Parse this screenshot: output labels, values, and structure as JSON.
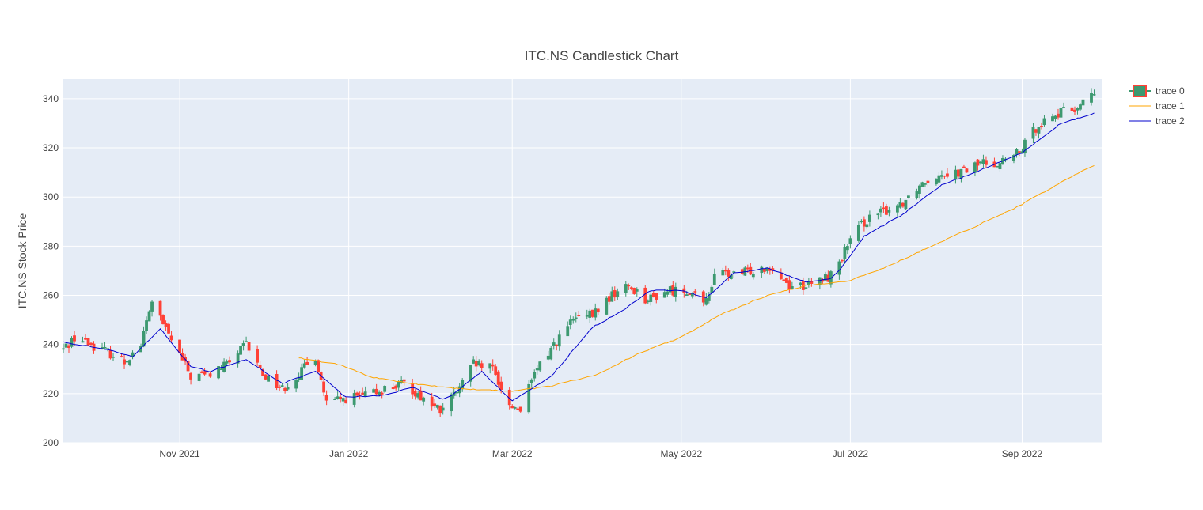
{
  "chart_data": {
    "type": "candlestick",
    "title": "ITC.NS Candlestick Chart",
    "xlabel": "",
    "ylabel": "ITC.NS Stock Price",
    "ylim": [
      200,
      348
    ],
    "xlim": [
      "2021-09-20",
      "2022-09-30"
    ],
    "yticks": [
      200,
      220,
      240,
      260,
      280,
      300,
      320,
      340
    ],
    "xticks": [
      {
        "date": "2021-11-01",
        "label": "Nov 2021"
      },
      {
        "date": "2022-01-01",
        "label": "Jan 2022"
      },
      {
        "date": "2022-03-01",
        "label": "Mar 2022"
      },
      {
        "date": "2022-05-01",
        "label": "May 2022"
      },
      {
        "date": "2022-07-01",
        "label": "Jul 2022"
      },
      {
        "date": "2022-09-01",
        "label": "Sep 2022"
      }
    ],
    "grid": true,
    "legend_position": "top-right",
    "colors": {
      "increasing": "#3d9970",
      "decreasing": "#ff4136",
      "ma_long": "#ffa500",
      "ma_short": "#0000cd",
      "plot_bg": "#e5ecf6",
      "grid": "#ffffff"
    },
    "series": [
      {
        "name": "trace 0",
        "kind": "candlestick"
      },
      {
        "name": "trace 1",
        "kind": "line"
      },
      {
        "name": "trace 2",
        "kind": "line"
      }
    ],
    "close_anchors": [
      [
        "2021-09-20",
        238
      ],
      [
        "2021-09-24",
        243
      ],
      [
        "2021-09-30",
        240
      ],
      [
        "2021-10-06",
        237
      ],
      [
        "2021-10-12",
        233
      ],
      [
        "2021-10-18",
        240
      ],
      [
        "2021-10-22",
        258
      ],
      [
        "2021-10-26",
        248
      ],
      [
        "2021-10-30",
        240
      ],
      [
        "2021-11-05",
        227
      ],
      [
        "2021-11-12",
        228
      ],
      [
        "2021-11-18",
        232
      ],
      [
        "2021-11-25",
        240
      ],
      [
        "2021-12-01",
        228
      ],
      [
        "2021-12-08",
        222
      ],
      [
        "2021-12-14",
        228
      ],
      [
        "2021-12-20",
        235
      ],
      [
        "2021-12-24",
        216
      ],
      [
        "2021-12-31",
        218
      ],
      [
        "2022-01-07",
        219
      ],
      [
        "2022-01-14",
        222
      ],
      [
        "2022-01-21",
        224
      ],
      [
        "2022-01-28",
        218
      ],
      [
        "2022-02-03",
        213
      ],
      [
        "2022-02-10",
        222
      ],
      [
        "2022-02-15",
        232
      ],
      [
        "2022-02-22",
        230
      ],
      [
        "2022-02-28",
        215
      ],
      [
        "2022-03-04",
        214
      ],
      [
        "2022-03-10",
        230
      ],
      [
        "2022-03-16",
        240
      ],
      [
        "2022-03-23",
        250
      ],
      [
        "2022-03-30",
        252
      ],
      [
        "2022-04-06",
        260
      ],
      [
        "2022-04-12",
        264
      ],
      [
        "2022-04-19",
        258
      ],
      [
        "2022-04-26",
        262
      ],
      [
        "2022-05-04",
        262
      ],
      [
        "2022-05-09",
        256
      ],
      [
        "2022-05-14",
        270
      ],
      [
        "2022-05-20",
        268
      ],
      [
        "2022-05-26",
        270
      ],
      [
        "2022-06-02",
        272
      ],
      [
        "2022-06-09",
        264
      ],
      [
        "2022-06-16",
        264
      ],
      [
        "2022-06-24",
        268
      ],
      [
        "2022-07-01",
        282
      ],
      [
        "2022-07-06",
        290
      ],
      [
        "2022-07-13",
        294
      ],
      [
        "2022-07-20",
        298
      ],
      [
        "2022-07-27",
        306
      ],
      [
        "2022-08-03",
        310
      ],
      [
        "2022-08-10",
        310
      ],
      [
        "2022-08-17",
        314
      ],
      [
        "2022-08-24",
        314
      ],
      [
        "2022-08-31",
        318
      ],
      [
        "2022-09-07",
        330
      ],
      [
        "2022-09-14",
        334
      ],
      [
        "2022-09-20",
        336
      ],
      [
        "2022-09-27",
        342
      ]
    ],
    "ma_long_anchors": [
      [
        "2021-12-14",
        234.5
      ],
      [
        "2021-12-28",
        232
      ],
      [
        "2022-01-10",
        226.5
      ],
      [
        "2022-01-25",
        224
      ],
      [
        "2022-02-10",
        222
      ],
      [
        "2022-02-28",
        221
      ],
      [
        "2022-03-15",
        223
      ],
      [
        "2022-04-01",
        228
      ],
      [
        "2022-04-15",
        236
      ],
      [
        "2022-05-01",
        243
      ],
      [
        "2022-05-15",
        252
      ],
      [
        "2022-06-01",
        260
      ],
      [
        "2022-06-15",
        264
      ],
      [
        "2022-07-01",
        266
      ],
      [
        "2022-07-15",
        272
      ],
      [
        "2022-08-01",
        281
      ],
      [
        "2022-08-15",
        288
      ],
      [
        "2022-09-01",
        297
      ],
      [
        "2022-09-15",
        306
      ],
      [
        "2022-09-27",
        313
      ]
    ],
    "ma_short_anchors": [
      [
        "2021-09-20",
        241
      ],
      [
        "2021-10-06",
        238
      ],
      [
        "2021-10-15",
        235
      ],
      [
        "2021-10-25",
        246.5
      ],
      [
        "2021-11-05",
        231
      ],
      [
        "2021-11-12",
        229
      ],
      [
        "2021-11-25",
        234
      ],
      [
        "2021-12-08",
        224
      ],
      [
        "2021-12-20",
        229
      ],
      [
        "2021-12-31",
        218.5
      ],
      [
        "2022-01-14",
        219.5
      ],
      [
        "2022-01-24",
        222.5
      ],
      [
        "2022-02-05",
        217.5
      ],
      [
        "2022-02-18",
        229
      ],
      [
        "2022-03-01",
        217
      ],
      [
        "2022-03-15",
        227
      ],
      [
        "2022-03-30",
        247
      ],
      [
        "2022-04-10",
        254
      ],
      [
        "2022-04-20",
        262
      ],
      [
        "2022-05-01",
        262
      ],
      [
        "2022-05-10",
        259
      ],
      [
        "2022-05-20",
        269
      ],
      [
        "2022-06-01",
        271
      ],
      [
        "2022-06-15",
        265.5
      ],
      [
        "2022-06-25",
        267
      ],
      [
        "2022-07-06",
        284
      ],
      [
        "2022-07-20",
        293
      ],
      [
        "2022-08-03",
        305
      ],
      [
        "2022-08-15",
        310
      ],
      [
        "2022-09-01",
        318
      ],
      [
        "2022-09-15",
        330
      ],
      [
        "2022-09-27",
        334
      ]
    ]
  }
}
